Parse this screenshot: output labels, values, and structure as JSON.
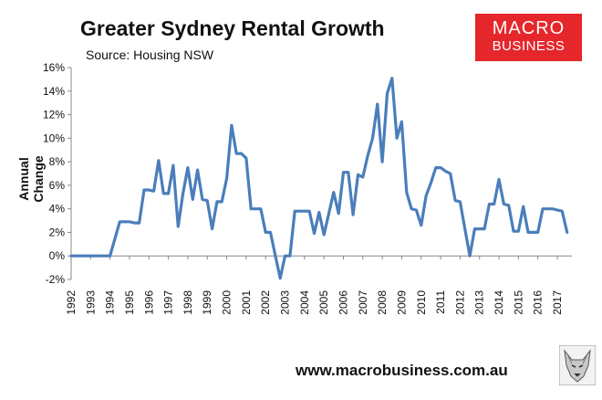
{
  "title": "Greater Sydney Rental Growth",
  "subtitle": "Source: Housing NSW",
  "logo": {
    "line1": "MACRO",
    "line2": "BUSINESS",
    "color": "#e5262b"
  },
  "footer": "www.macrobusiness.com.au",
  "chart_data": {
    "type": "line",
    "title": "Greater Sydney Rental Growth",
    "ylabel": "Annual Change",
    "xlabel": "",
    "ylim": [
      -2,
      16
    ],
    "yticks": [
      -2,
      0,
      2,
      4,
      6,
      8,
      10,
      12,
      14,
      16
    ],
    "ytick_labels": [
      "-2%",
      "0%",
      "2%",
      "4%",
      "6%",
      "8%",
      "10%",
      "12%",
      "14%",
      "16%"
    ],
    "xlim": [
      1992,
      2017.75
    ],
    "xticks": [
      1992,
      1993,
      1994,
      1995,
      1996,
      1997,
      1998,
      1999,
      2000,
      2001,
      2002,
      2003,
      2004,
      2005,
      2006,
      2007,
      2008,
      2009,
      2010,
      2011,
      2012,
      2013,
      2014,
      2015,
      2016,
      2017
    ],
    "grid": false,
    "line_color": "#4a7ebb",
    "series": [
      {
        "x": [
          1992.0,
          1993.0,
          1993.25,
          1993.5,
          1994.0,
          1994.5,
          1994.75,
          1995.0,
          1995.25,
          1995.5,
          1995.75,
          1996.0,
          1996.25,
          1996.5,
          1996.75,
          1997.0,
          1997.25,
          1997.5,
          1997.75,
          1998.0,
          1998.25,
          1998.5,
          1998.75,
          1999.0,
          1999.25,
          1999.5,
          1999.75,
          2000.0,
          2000.25,
          2000.5,
          2000.75,
          2001.0,
          2001.25,
          2001.5,
          2001.75,
          2002.0,
          2002.25,
          2002.5,
          2002.75,
          2003.0,
          2003.25,
          2003.5,
          2003.75,
          2004.0,
          2004.25,
          2004.5,
          2004.75,
          2005.0,
          2005.25,
          2005.5,
          2005.75,
          2006.0,
          2006.25,
          2006.5,
          2006.75,
          2007.0,
          2007.25,
          2007.5,
          2007.75,
          2008.0,
          2008.25,
          2008.5,
          2008.75,
          2009.0,
          2009.25,
          2009.5,
          2009.75,
          2010.0,
          2010.25,
          2010.5,
          2010.75,
          2011.0,
          2011.25,
          2011.5,
          2011.75,
          2012.0,
          2012.25,
          2012.5,
          2012.75,
          2013.0,
          2013.25,
          2013.5,
          2013.75,
          2014.0,
          2014.25,
          2014.5,
          2014.75,
          2015.0,
          2015.25,
          2015.5,
          2015.75,
          2016.0,
          2016.25,
          2016.5,
          2016.75,
          2017.0,
          2017.25,
          2017.5
        ],
        "values": [
          0.0,
          0.0,
          0.0,
          0.0,
          0.0,
          2.9,
          2.9,
          2.9,
          2.8,
          2.8,
          5.6,
          5.6,
          5.5,
          8.1,
          5.3,
          5.3,
          7.7,
          2.5,
          5.3,
          7.5,
          4.8,
          7.3,
          4.8,
          4.7,
          2.3,
          4.6,
          4.6,
          6.6,
          11.1,
          8.7,
          8.7,
          8.3,
          4.0,
          4.0,
          4.0,
          2.0,
          2.0,
          0.0,
          -1.9,
          0.0,
          0.0,
          3.8,
          3.8,
          3.8,
          3.8,
          1.9,
          3.7,
          1.8,
          3.6,
          5.4,
          3.6,
          7.1,
          7.1,
          3.5,
          6.9,
          6.7,
          8.5,
          10.0,
          12.9,
          8.0,
          13.8,
          15.1,
          10.0,
          11.4,
          5.4,
          4.0,
          3.9,
          2.6,
          5.1,
          6.2,
          7.5,
          7.5,
          7.2,
          7.0,
          4.7,
          4.6,
          2.3,
          0.0,
          2.3,
          2.3,
          2.3,
          4.4,
          4.4,
          6.5,
          4.4,
          4.3,
          2.1,
          2.1,
          4.2,
          2.0,
          2.0,
          2.0,
          4.0,
          4.0,
          4.0,
          3.9,
          3.8,
          2.0
        ]
      }
    ]
  }
}
